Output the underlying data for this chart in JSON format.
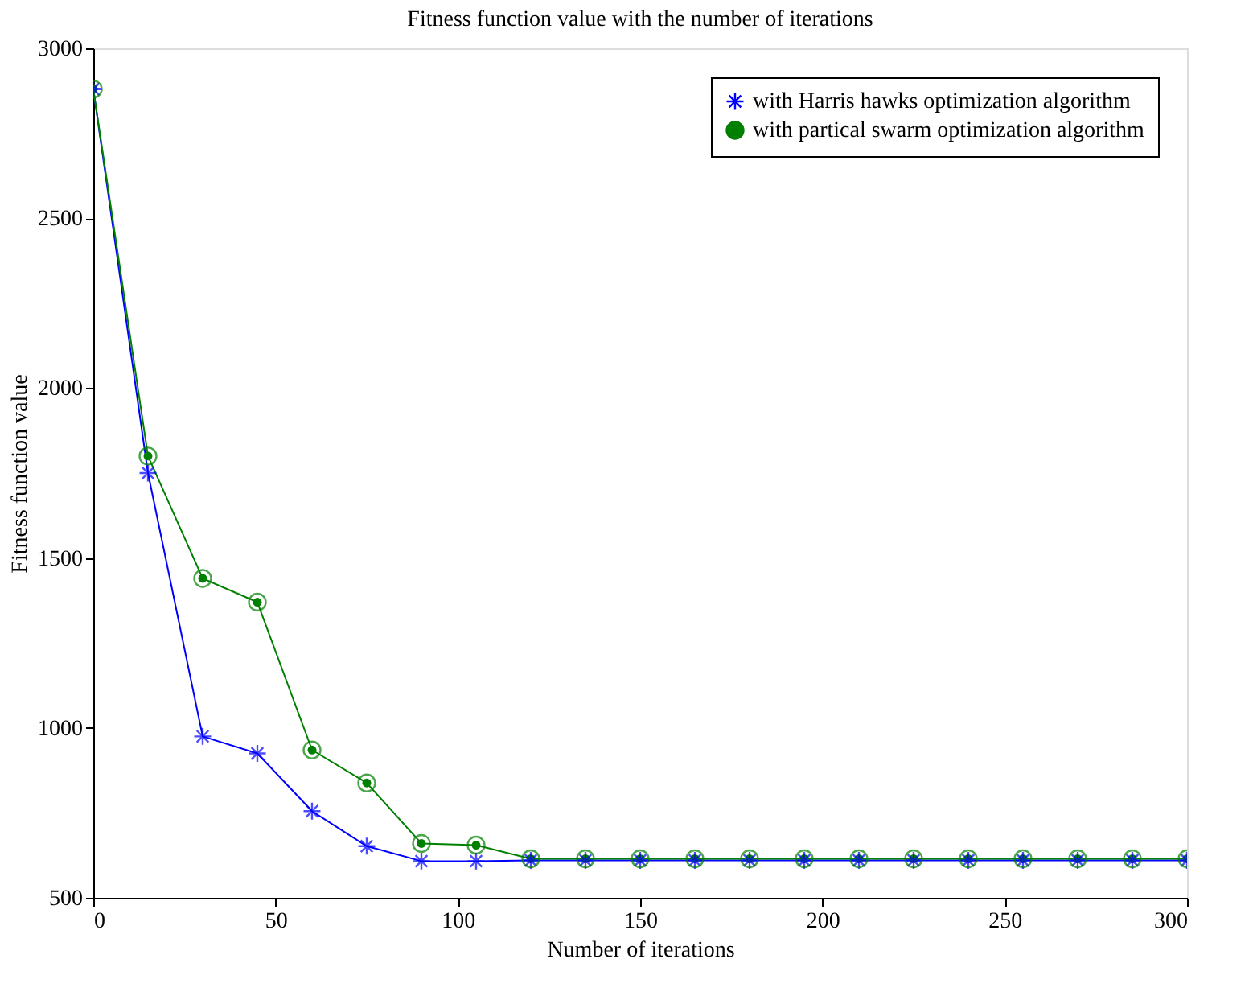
{
  "chart_data": {
    "type": "line",
    "title": "Fitness function value with the number of iterations",
    "xlabel": "Number of iterations",
    "ylabel": "Fitness function value",
    "x": [
      0,
      15,
      30,
      45,
      60,
      75,
      90,
      105,
      120,
      135,
      150,
      165,
      180,
      195,
      210,
      225,
      240,
      255,
      270,
      285,
      300
    ],
    "series": [
      {
        "name": "with Harris hawks optimization algorithm",
        "color": "#0000ff",
        "marker": "cross",
        "values": [
          2880,
          1750,
          975,
          925,
          755,
          652,
          608,
          608,
          610,
          610,
          610,
          610,
          610,
          610,
          610,
          610,
          610,
          610,
          610,
          610,
          610
        ]
      },
      {
        "name": "with partical swarm optimization algorithm",
        "color": "#008000",
        "marker": "circle",
        "values": [
          2880,
          1800,
          1440,
          1370,
          935,
          838,
          660,
          655,
          615,
          615,
          615,
          615,
          615,
          615,
          615,
          615,
          615,
          615,
          615,
          615,
          615
        ]
      }
    ],
    "xlim": [
      0,
      300
    ],
    "xticks": [
      0,
      50,
      100,
      150,
      200,
      250,
      300
    ],
    "ylim": [
      500,
      3000
    ],
    "yticks": [
      500,
      1000,
      1500,
      2000,
      2500,
      3000
    ],
    "grid": false,
    "legend": "top right",
    "line_style": "solid"
  }
}
